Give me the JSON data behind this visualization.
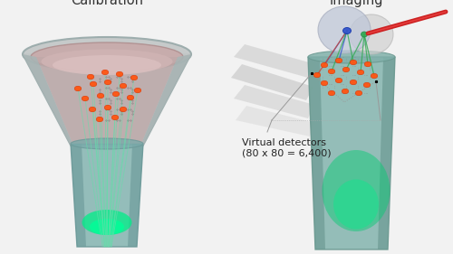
{
  "title_left": "Calibration",
  "title_right": "Imaging",
  "bg_color": "#f2f2f2",
  "annotation_text": "Virtual detectors\n(80 x 80 = 6,400)",
  "orange_dot_color": "#ff5511",
  "blue_dot_color": "#3355cc",
  "green_dot_color": "#33aa55",
  "red_laser_color": "#cc2222",
  "gray_hand_color": "#d8d8d8"
}
